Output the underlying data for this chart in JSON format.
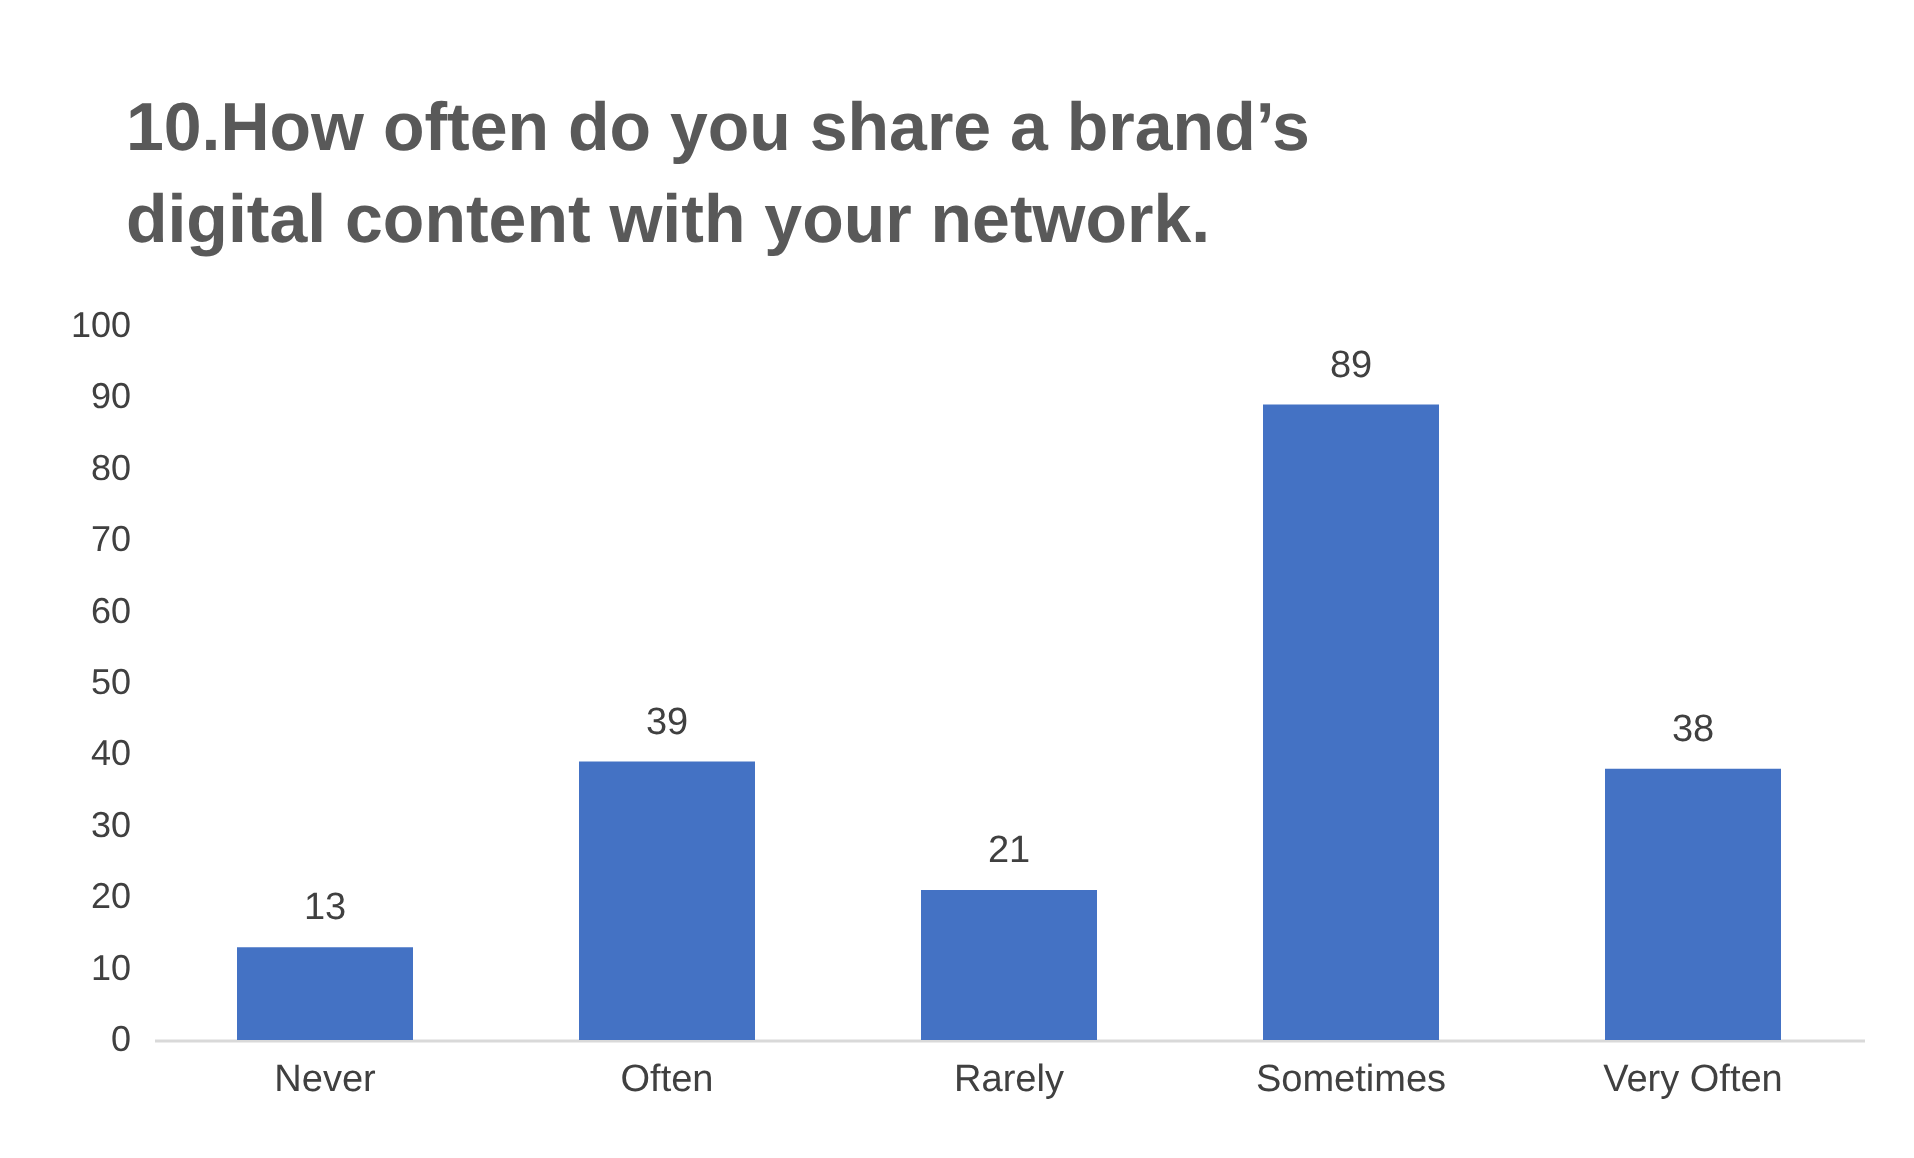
{
  "chart_data": {
    "type": "bar",
    "title": "10.How often do you share a brand’s digital content with your network.",
    "categories": [
      "Never",
      "Often",
      "Rarely",
      "Sometimes",
      "Very Often"
    ],
    "values": [
      13,
      39,
      21,
      89,
      38
    ],
    "color": "#4472c4",
    "ylim": [
      0,
      100
    ],
    "yticks": [
      0,
      10,
      20,
      30,
      40,
      50,
      60,
      70,
      80,
      90,
      100
    ],
    "grid": false,
    "data_labels": true
  }
}
